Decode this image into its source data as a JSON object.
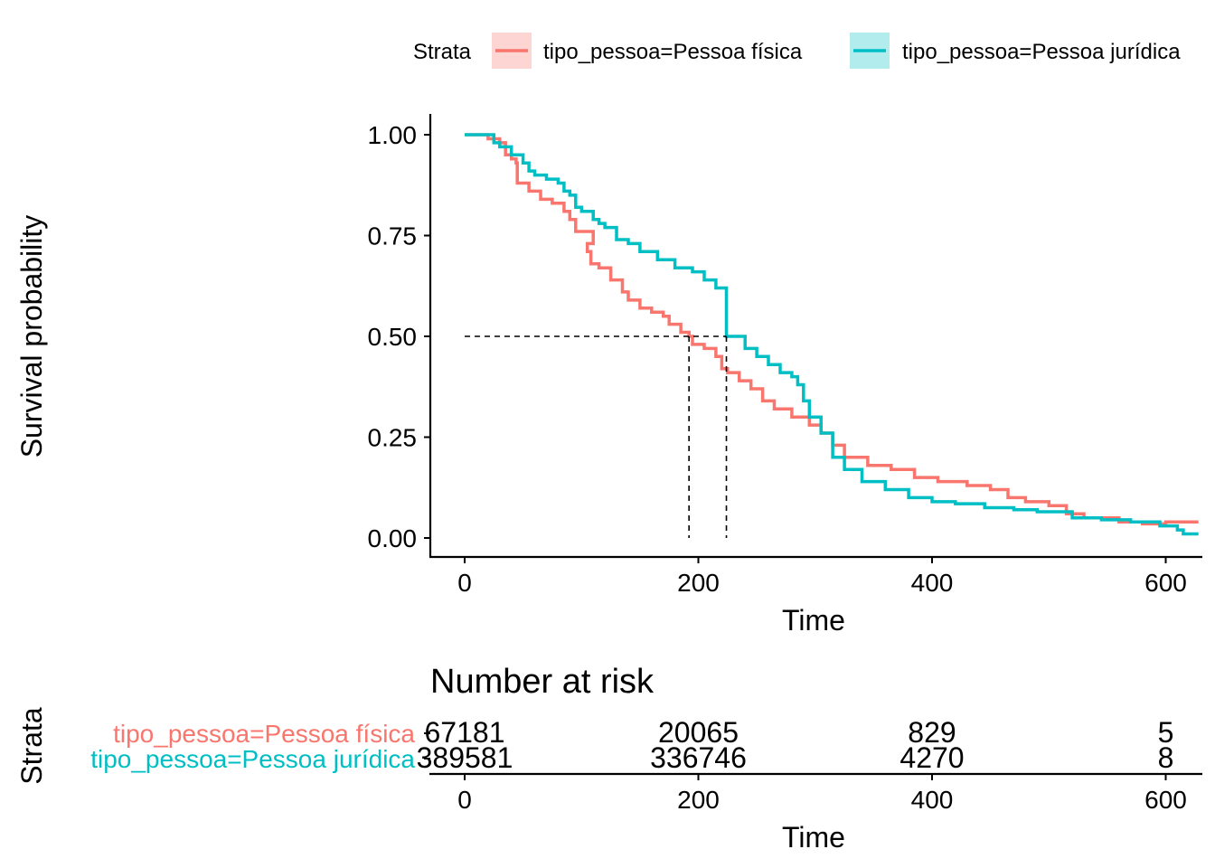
{
  "legend": {
    "title": "Strata",
    "items": [
      {
        "label": "tipo_pessoa=Pessoa física",
        "color": "#F8766D"
      },
      {
        "label": "tipo_pessoa=Pessoa jurídica",
        "color": "#00BFC4"
      }
    ]
  },
  "chart_data": [
    {
      "type": "line",
      "subtype": "kaplan-meier survival curve",
      "ylabel": "Survival probability",
      "xlabel": "Time",
      "xlim": [
        -30,
        630
      ],
      "ylim": [
        -0.05,
        1.05
      ],
      "x_ticks": [
        0,
        200,
        400,
        600
      ],
      "y_ticks": [
        0.0,
        0.25,
        0.5,
        0.75,
        1.0
      ],
      "y_tick_labels": [
        "0.00",
        "0.25",
        "0.50",
        "0.75",
        "1.00"
      ],
      "grid": false,
      "legend_position": "top",
      "median_survival": [
        {
          "series": "tipo_pessoa=Pessoa física",
          "x": 192,
          "y": 0.5
        },
        {
          "series": "tipo_pessoa=Pessoa jurídica",
          "x": 224,
          "y": 0.5
        }
      ],
      "series": [
        {
          "name": "tipo_pessoa=Pessoa física",
          "color": "#F8766D",
          "points": [
            [
              0,
              1.0
            ],
            [
              15,
              1.0
            ],
            [
              20,
              0.99
            ],
            [
              30,
              0.98
            ],
            [
              35,
              0.95
            ],
            [
              40,
              0.94
            ],
            [
              44,
              0.93
            ],
            [
              45,
              0.88
            ],
            [
              55,
              0.86
            ],
            [
              65,
              0.84
            ],
            [
              75,
              0.83
            ],
            [
              85,
              0.81
            ],
            [
              90,
              0.79
            ],
            [
              95,
              0.76
            ],
            [
              110,
              0.73
            ],
            [
              105,
              0.71
            ],
            [
              108,
              0.68
            ],
            [
              115,
              0.67
            ],
            [
              125,
              0.64
            ],
            [
              135,
              0.61
            ],
            [
              140,
              0.59
            ],
            [
              150,
              0.57
            ],
            [
              160,
              0.56
            ],
            [
              170,
              0.55
            ],
            [
              175,
              0.53
            ],
            [
              185,
              0.51
            ],
            [
              192,
              0.5
            ],
            [
              195,
              0.48
            ],
            [
              205,
              0.47
            ],
            [
              215,
              0.45
            ],
            [
              220,
              0.42
            ],
            [
              225,
              0.41
            ],
            [
              235,
              0.39
            ],
            [
              245,
              0.37
            ],
            [
              255,
              0.34
            ],
            [
              265,
              0.32
            ],
            [
              280,
              0.3
            ],
            [
              295,
              0.28
            ],
            [
              305,
              0.26
            ],
            [
              315,
              0.23
            ],
            [
              325,
              0.2
            ],
            [
              345,
              0.18
            ],
            [
              365,
              0.17
            ],
            [
              385,
              0.15
            ],
            [
              405,
              0.14
            ],
            [
              430,
              0.13
            ],
            [
              450,
              0.12
            ],
            [
              465,
              0.1
            ],
            [
              480,
              0.09
            ],
            [
              500,
              0.08
            ],
            [
              515,
              0.06
            ],
            [
              530,
              0.05
            ],
            [
              560,
              0.04
            ],
            [
              580,
              0.035
            ],
            [
              600,
              0.04
            ],
            [
              628,
              0.04
            ]
          ]
        },
        {
          "name": "tipo_pessoa=Pessoa jurídica",
          "color": "#00BFC4",
          "points": [
            [
              0,
              1.0
            ],
            [
              20,
              1.0
            ],
            [
              25,
              0.98
            ],
            [
              30,
              0.97
            ],
            [
              40,
              0.95
            ],
            [
              50,
              0.93
            ],
            [
              55,
              0.91
            ],
            [
              60,
              0.9
            ],
            [
              70,
              0.89
            ],
            [
              80,
              0.88
            ],
            [
              85,
              0.86
            ],
            [
              90,
              0.85
            ],
            [
              95,
              0.82
            ],
            [
              100,
              0.81
            ],
            [
              110,
              0.79
            ],
            [
              115,
              0.78
            ],
            [
              120,
              0.77
            ],
            [
              130,
              0.74
            ],
            [
              140,
              0.73
            ],
            [
              150,
              0.71
            ],
            [
              165,
              0.69
            ],
            [
              180,
              0.67
            ],
            [
              195,
              0.66
            ],
            [
              205,
              0.64
            ],
            [
              215,
              0.62
            ],
            [
              224,
              0.5
            ],
            [
              240,
              0.47
            ],
            [
              250,
              0.45
            ],
            [
              260,
              0.43
            ],
            [
              270,
              0.41
            ],
            [
              280,
              0.4
            ],
            [
              285,
              0.38
            ],
            [
              290,
              0.34
            ],
            [
              295,
              0.3
            ],
            [
              305,
              0.26
            ],
            [
              315,
              0.2
            ],
            [
              325,
              0.17
            ],
            [
              340,
              0.14
            ],
            [
              360,
              0.12
            ],
            [
              380,
              0.1
            ],
            [
              400,
              0.09
            ],
            [
              420,
              0.085
            ],
            [
              445,
              0.075
            ],
            [
              470,
              0.07
            ],
            [
              490,
              0.065
            ],
            [
              520,
              0.05
            ],
            [
              545,
              0.045
            ],
            [
              570,
              0.04
            ],
            [
              595,
              0.03
            ],
            [
              610,
              0.02
            ],
            [
              615,
              0.01
            ],
            [
              628,
              0.01
            ]
          ]
        }
      ]
    },
    {
      "type": "table",
      "title": "Number at risk",
      "ylabel": "Strata",
      "xlabel": "Time",
      "x_ticks": [
        0,
        200,
        400,
        600
      ],
      "rows": [
        {
          "name": "tipo_pessoa=Pessoa física",
          "color": "#F8766D",
          "values": [
            "67181",
            "20065",
            "829",
            "5"
          ]
        },
        {
          "name": "tipo_pessoa=Pessoa jurídica",
          "color": "#00BFC4",
          "values": [
            "389581",
            "336746",
            "4270",
            "8"
          ]
        }
      ]
    }
  ]
}
